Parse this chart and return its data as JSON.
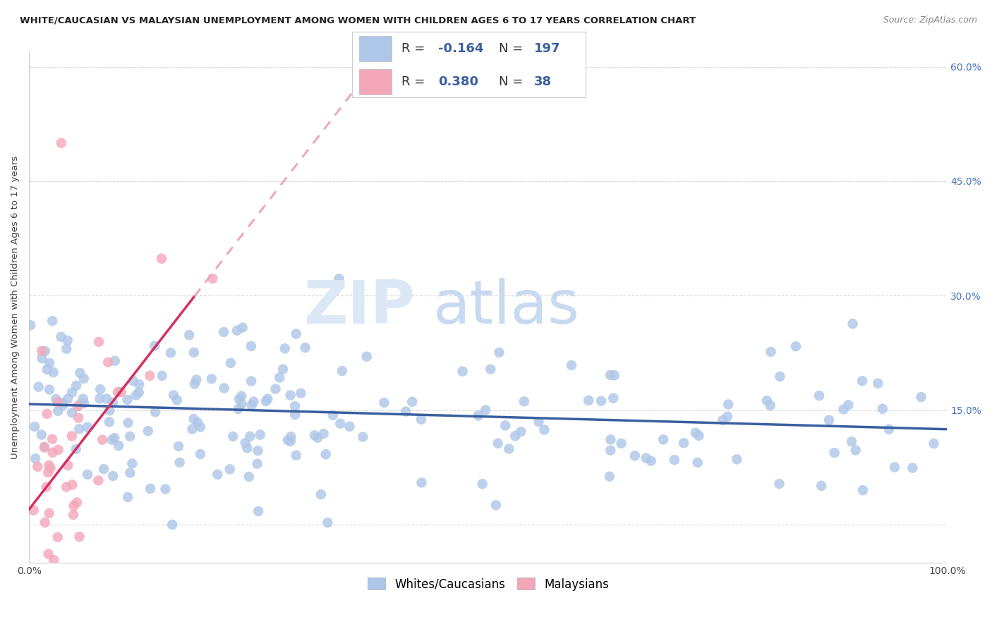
{
  "title": "WHITE/CAUCASIAN VS MALAYSIAN UNEMPLOYMENT AMONG WOMEN WITH CHILDREN AGES 6 TO 17 YEARS CORRELATION CHART",
  "source": "Source: ZipAtlas.com",
  "ylabel": "Unemployment Among Women with Children Ages 6 to 17 years",
  "xlim": [
    0,
    100
  ],
  "ylim": [
    -5,
    62
  ],
  "yticks": [
    0,
    15,
    30,
    45,
    60
  ],
  "legend_labels": [
    "Whites/Caucasians",
    "Malaysians"
  ],
  "blue_color": "#aec6e8",
  "pink_color": "#f4a7b9",
  "blue_line_color": "#3a5fa0",
  "pink_line_color": "#d43060",
  "pink_dash_color": "#f0a0b8",
  "R_blue": -0.164,
  "N_blue": 197,
  "R_pink": 0.38,
  "N_pink": 38,
  "background_color": "#ffffff",
  "grid_color": "#d8d8d8",
  "watermark_color": "#dce8f5"
}
